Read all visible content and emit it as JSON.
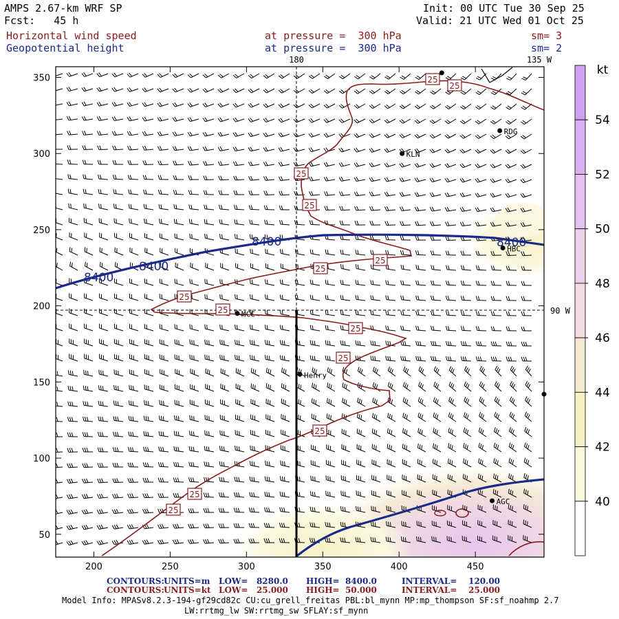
{
  "header": {
    "model_title": "AMPS 2.67-km WRF SP",
    "forecast": "Fcst:   45 h",
    "init": "Init: 00 UTC Tue 30 Sep 25",
    "valid": "Valid: 21 UTC Wed 01 Oct 25",
    "field1_name": "Horizontal wind speed",
    "field1_level": "at pressure =  300 hPa",
    "field1_sm": "sm= 3",
    "field2_name": "Geopotential height",
    "field2_level": "at pressure =  300 hPa",
    "field2_sm": "sm= 2"
  },
  "colors": {
    "speed_contour": "#8b1a1a",
    "height_contour": "#1a2a8a",
    "shade_40": "#fbf9dc",
    "shade_42": "#f7f0c4",
    "shade_44": "#f5e8d0",
    "shade_46": "#f1dde0",
    "shade_48": "#ead0e8",
    "shade_50": "#e2c2ee",
    "shade_52": "#d8b0f0",
    "shade_54": "#d0a0f0"
  },
  "map_labels": {
    "lon_180": "180",
    "lon_135w": "135 W",
    "lon_90w": "90 W",
    "stations": [
      {
        "name": "KLN",
        "gx": 402,
        "gy": 300
      },
      {
        "name": "RDG",
        "gx": 466,
        "gy": 315
      },
      {
        "name": "HBC",
        "gx": 468,
        "gy": 238
      },
      {
        "name": "MCC",
        "gx": 294,
        "gy": 195
      },
      {
        "name": "Henry",
        "gx": 335,
        "gy": 155
      },
      {
        "name": "AGC",
        "gx": 461,
        "gy": 72
      },
      {
        "name": "",
        "gx": 495,
        "gy": 142
      },
      {
        "name": "",
        "gx": 428,
        "gy": 353
      }
    ],
    "height_labels": [
      "8400",
      "8400",
      "8400",
      "8400"
    ],
    "speed_label": "25"
  },
  "axes": {
    "x_ticks": [
      "200",
      "250",
      "300",
      "350",
      "400",
      "450"
    ],
    "x_values": [
      200,
      250,
      300,
      350,
      400,
      450
    ],
    "y_ticks": [
      "50",
      "100",
      "150",
      "200",
      "250",
      "300",
      "350"
    ],
    "y_values": [
      50,
      100,
      150,
      200,
      250,
      300,
      350
    ],
    "xlim": [
      175,
      495
    ],
    "ylim": [
      35,
      357
    ]
  },
  "colorbar": {
    "unit": "kt",
    "labels": [
      "40",
      "42",
      "44",
      "46",
      "48",
      "50",
      "52",
      "54"
    ]
  },
  "footer": {
    "c1_label": "CONTOURS:",
    "c1_units": "UNITS=m",
    "c1_low": "LOW=   8280.0",
    "c1_high": "HIGH=  8400.0",
    "c1_interval": "INTERVAL=    120.00",
    "c2_label": "CONTOURS:",
    "c2_units": "UNITS=kt",
    "c2_low": "LOW=   25.000",
    "c2_high": "HIGH=  50.000",
    "c2_interval": "INTERVAL=    25.000",
    "model_info_1": "Model Info: MPASv8.2.3-194-gf29cd82c CU:cu_grell_freitas PBL:bl_mynn MP:mp_thompson SF:sf_noahmp 2.7",
    "model_info_2": "LW:rrtmg_lw SW:rrtmg_sw SFLAY:sf_mynn"
  }
}
